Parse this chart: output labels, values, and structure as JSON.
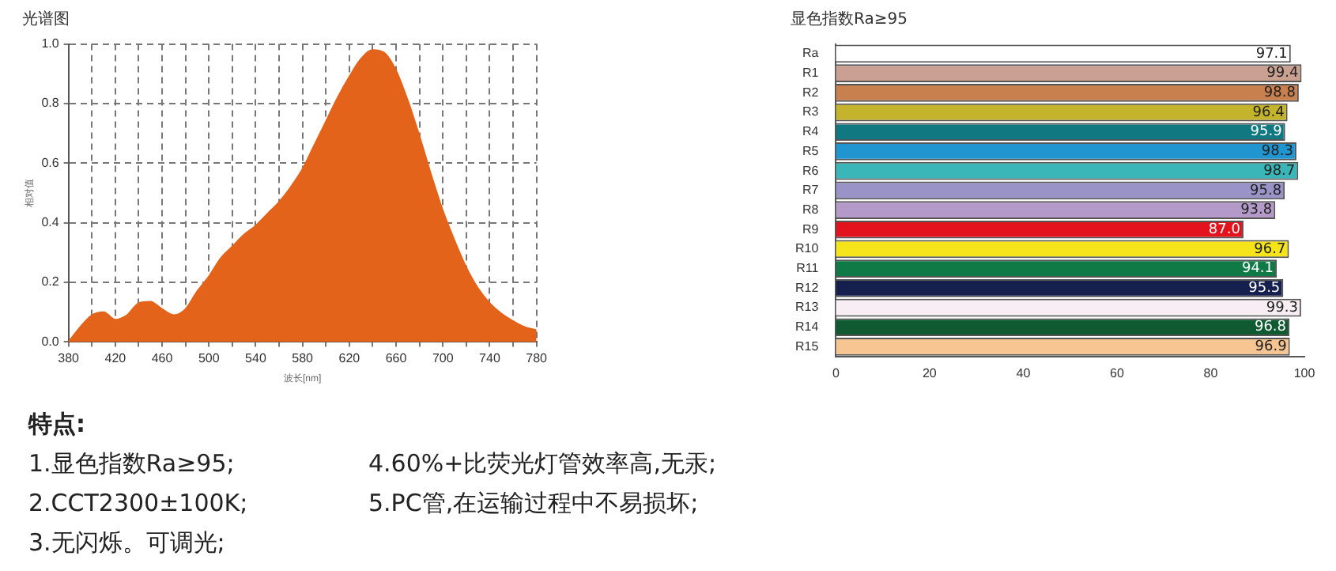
{
  "chart_data": [
    {
      "type": "area",
      "title": "光谱图",
      "xlabel": "波长[nm]",
      "ylabel": "相对值",
      "grid": true,
      "line_style": "dashed",
      "marker": "none",
      "x": [
        380,
        390,
        400,
        410,
        420,
        430,
        440,
        450,
        460,
        470,
        480,
        490,
        500,
        510,
        520,
        530,
        540,
        550,
        560,
        570,
        580,
        590,
        600,
        610,
        620,
        630,
        640,
        650,
        660,
        670,
        680,
        690,
        700,
        710,
        720,
        730,
        740,
        750,
        760,
        770,
        780
      ],
      "series": [
        {
          "color": "#e4631a",
          "values": [
            0,
            0.05,
            0.09,
            0.1,
            0.075,
            0.09,
            0.13,
            0.135,
            0.11,
            0.09,
            0.11,
            0.17,
            0.22,
            0.28,
            0.32,
            0.36,
            0.39,
            0.43,
            0.47,
            0.52,
            0.58,
            0.66,
            0.74,
            0.82,
            0.89,
            0.95,
            0.98,
            0.97,
            0.91,
            0.81,
            0.69,
            0.56,
            0.44,
            0.34,
            0.25,
            0.18,
            0.13,
            0.095,
            0.07,
            0.05,
            0.04
          ]
        }
      ],
      "xlim": [
        380,
        780
      ],
      "xticks": [
        380,
        {
          "value": 400,
          "label": null
        },
        420,
        {
          "value": 440,
          "label": null
        },
        460,
        {
          "value": 480,
          "label": null
        },
        500,
        {
          "value": 520,
          "label": null
        },
        540,
        {
          "value": 560,
          "label": null
        },
        580,
        {
          "value": 600,
          "label": null
        },
        620,
        {
          "value": 640,
          "label": null
        },
        660,
        {
          "value": 680,
          "label": null
        },
        700,
        {
          "value": 720,
          "label": null
        },
        740,
        {
          "value": 760,
          "label": null
        },
        780
      ],
      "ylim": [
        0,
        1
      ],
      "yticks": [
        {
          "value": 0,
          "label": "0.0"
        },
        0.2,
        0.4,
        0.6,
        0.8,
        {
          "value": 1,
          "label": "1.0"
        }
      ]
    },
    {
      "type": "bar",
      "orientation": "horizontal",
      "title": "显色指数Ra≥95",
      "grid": false,
      "value_labels": [
        "97.1",
        "99.4",
        "98.8",
        "96.4",
        "95.9",
        "98.3",
        "98.7",
        "95.8",
        "93.8",
        "87.0",
        "96.7",
        "94.1",
        "95.5",
        "99.3",
        "96.8",
        "96.9"
      ],
      "categories": [
        "Ra",
        "R1",
        "R2",
        "R3",
        "R4",
        "R5",
        "R6",
        "R7",
        "R8",
        "R9",
        "R10",
        "R11",
        "R12",
        "R13",
        "R14",
        "R15"
      ],
      "values": [
        97.1,
        99.4,
        98.8,
        96.4,
        95.9,
        98.3,
        98.7,
        95.8,
        93.8,
        87.0,
        96.7,
        94.1,
        95.5,
        99.3,
        96.8,
        96.9
      ],
      "colors": [
        "#ffffff",
        "#c9a092",
        "#c8804f",
        "#c4b32c",
        "#0f7880",
        "#2195d0",
        "#3ab6b8",
        "#9a93c8",
        "#b49ac8",
        "#e3131e",
        "#f5e41a",
        "#0f7a46",
        "#15204e",
        "#f6eef2",
        "#0f5a30",
        "#f7c592"
      ],
      "xlim": [
        0,
        100
      ],
      "xticks": [
        0,
        20,
        40,
        60,
        80,
        100
      ]
    },
    {
      "type": "other",
      "title": "特点:",
      "annotations": [
        "1.显色指数Ra≥95;",
        "4.60%+比荧光灯管效率高,无汞;",
        "2.CCT2300±100K;",
        "5.PC管,在运输过程中不易损坏;",
        "3.无闪烁。可调光;"
      ]
    }
  ]
}
